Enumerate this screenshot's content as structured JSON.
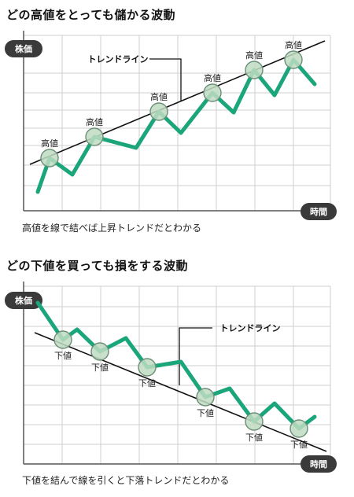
{
  "chart_data": [
    {
      "type": "line",
      "title": "どの高値をとっても儲かる波動",
      "caption": "高値を線で結べば上昇トレンドだとわかる",
      "ylabel": "株価",
      "xlabel": "時間",
      "trend_label": "トレンドライン",
      "point_label": "高値",
      "series": [
        {
          "name": "",
          "values": [
            [
              48,
              244
            ],
            [
              63,
              201
            ],
            [
              92,
              222
            ],
            [
              120,
              174
            ],
            [
              173,
              188
            ],
            [
              202,
              142
            ],
            [
              230,
              169
            ],
            [
              270,
              118
            ],
            [
              297,
              143
            ],
            [
              323,
              89
            ],
            [
              349,
              121
            ],
            [
              373,
              76
            ],
            [
              400,
              107
            ]
          ]
        }
      ],
      "highlight_indices": [
        1,
        3,
        5,
        7,
        9,
        11
      ],
      "trendline": [
        [
          38,
          209
        ],
        [
          413,
          52
        ]
      ]
    },
    {
      "type": "line",
      "title": "どの下値を買っても損をする波動",
      "caption": "下値を結んで線を引くと下落トレンドだとわかる",
      "ylabel": "株価",
      "xlabel": "時間",
      "trend_label": "トレンドライン",
      "point_label": "下値",
      "series": [
        {
          "name": "",
          "values": [
            [
              48,
              385
            ],
            [
              80,
              432
            ],
            [
              98,
              419
            ],
            [
              127,
              447
            ],
            [
              160,
              430
            ],
            [
              187,
              467
            ],
            [
              230,
              460
            ],
            [
              261,
              505
            ],
            [
              292,
              494
            ],
            [
              323,
              536
            ],
            [
              349,
              513
            ],
            [
              380,
              545
            ],
            [
              400,
              530
            ]
          ]
        }
      ],
      "highlight_indices": [
        1,
        3,
        5,
        7,
        9,
        11
      ],
      "trendline": [
        [
          44,
          423
        ],
        [
          415,
          574
        ]
      ]
    }
  ],
  "colors": {
    "line": "#1aa57a",
    "grid": "#cfcfcf",
    "badge": "#3a3a3a",
    "marker_fill": "#bfdcc2",
    "marker_stroke": "#6c8e78"
  }
}
